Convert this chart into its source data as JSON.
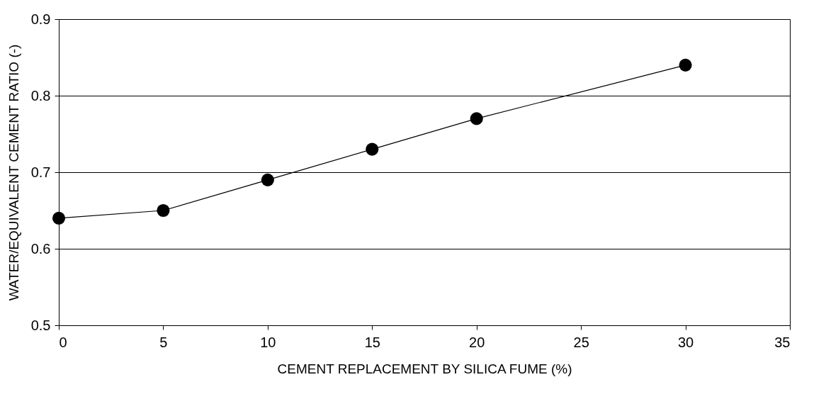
{
  "chart_data": {
    "type": "line",
    "xlabel": "CEMENT REPLACEMENT BY SILICA FUME (%)",
    "ylabel": "WATER/EQUIVALENT CEMENT RATIO (-)",
    "x": [
      0,
      5,
      10,
      15,
      20,
      30
    ],
    "series": [
      {
        "color": "#000000",
        "values": [
          0.64,
          0.65,
          0.69,
          0.73,
          0.77,
          0.84
        ]
      }
    ],
    "xlim": [
      0,
      35
    ],
    "xticks": [
      0,
      5,
      10,
      15,
      20,
      25,
      30,
      35
    ],
    "ylim": [
      0.5,
      0.9
    ],
    "yticks": [
      0.5,
      0.6,
      0.7,
      0.8,
      0.9
    ],
    "grid": "y",
    "marker": "circle",
    "line_style": "solid"
  }
}
